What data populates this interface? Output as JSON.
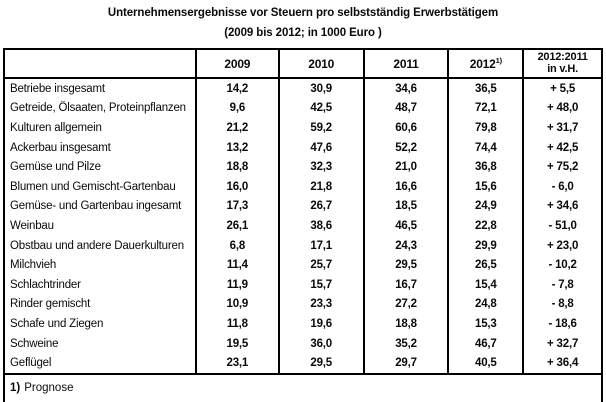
{
  "page": {
    "title": "Unternehmensergebnisse vor Steuern pro selbstständig Erwerbstätigem",
    "subtitle": "(2009 bis 2012; in 1000 Euro )"
  },
  "chart_data": {
    "type": "table",
    "title": "Unternehmensergebnisse vor Steuern pro selbstständig Erwerbstätigem",
    "subtitle": "(2009 bis 2012; in 1000 Euro )",
    "header": {
      "label_col": "",
      "years": [
        "2009",
        "2010",
        "2011"
      ],
      "year_forecast": {
        "label": "2012",
        "footnote_marker": "1)"
      },
      "ratio": {
        "line1": "2012:2011",
        "line2": "in v.H."
      }
    },
    "rows": [
      {
        "label": "Betriebe insgesamt",
        "values": [
          "14,2",
          "30,9",
          "34,6",
          "36,5",
          "+ 5,5"
        ]
      },
      {
        "label": "Getreide, Ölsaaten, Proteinpflanzen",
        "values": [
          "9,6",
          "42,5",
          "48,7",
          "72,1",
          "+ 48,0"
        ]
      },
      {
        "label": "Kulturen allgemein",
        "values": [
          "21,2",
          "59,2",
          "60,6",
          "79,8",
          "+ 31,7"
        ]
      },
      {
        "label": "Ackerbau insgesamt",
        "values": [
          "13,2",
          "47,6",
          "52,2",
          "74,4",
          "+ 42,5"
        ]
      },
      {
        "label": "Gemüse und Pilze",
        "values": [
          "18,8",
          "32,3",
          "21,0",
          "36,8",
          "+ 75,2"
        ]
      },
      {
        "label": "Blumen und Gemischt-Gartenbau",
        "values": [
          "16,0",
          "21,8",
          "16,6",
          "15,6",
          "-  6,0"
        ]
      },
      {
        "label": "Gemüse- und Gartenbau ingesamt",
        "values": [
          "17,3",
          "26,7",
          "18,5",
          "24,9",
          "+ 34,6"
        ]
      },
      {
        "label": "Weinbau",
        "values": [
          "26,1",
          "38,6",
          "46,5",
          "22,8",
          "- 51,0"
        ]
      },
      {
        "label": "Obstbau und andere Dauerkulturen",
        "values": [
          "6,8",
          "17,1",
          "24,3",
          "29,9",
          "+ 23,0"
        ]
      },
      {
        "label": "Milchvieh",
        "values": [
          "11,4",
          "25,7",
          "29,5",
          "26,5",
          "- 10,2"
        ]
      },
      {
        "label": "Schlachtrinder",
        "values": [
          "11,9",
          "15,7",
          "16,7",
          "15,4",
          "-  7,8"
        ]
      },
      {
        "label": "Rinder gemischt",
        "values": [
          "10,9",
          "23,3",
          "27,2",
          "24,8",
          "-  8,8"
        ]
      },
      {
        "label": "Schafe und Ziegen",
        "values": [
          "11,8",
          "19,6",
          "18,8",
          "15,3",
          "- 18,6"
        ]
      },
      {
        "label": "Schweine",
        "values": [
          "19,5",
          "36,0",
          "35,2",
          "46,7",
          "+ 32,7"
        ]
      },
      {
        "label": "Geflügel",
        "values": [
          "23,1",
          "29,5",
          "29,7",
          "40,5",
          "+ 36,4"
        ]
      }
    ],
    "footnote": {
      "marker": "1)",
      "text": "Prognose"
    }
  }
}
